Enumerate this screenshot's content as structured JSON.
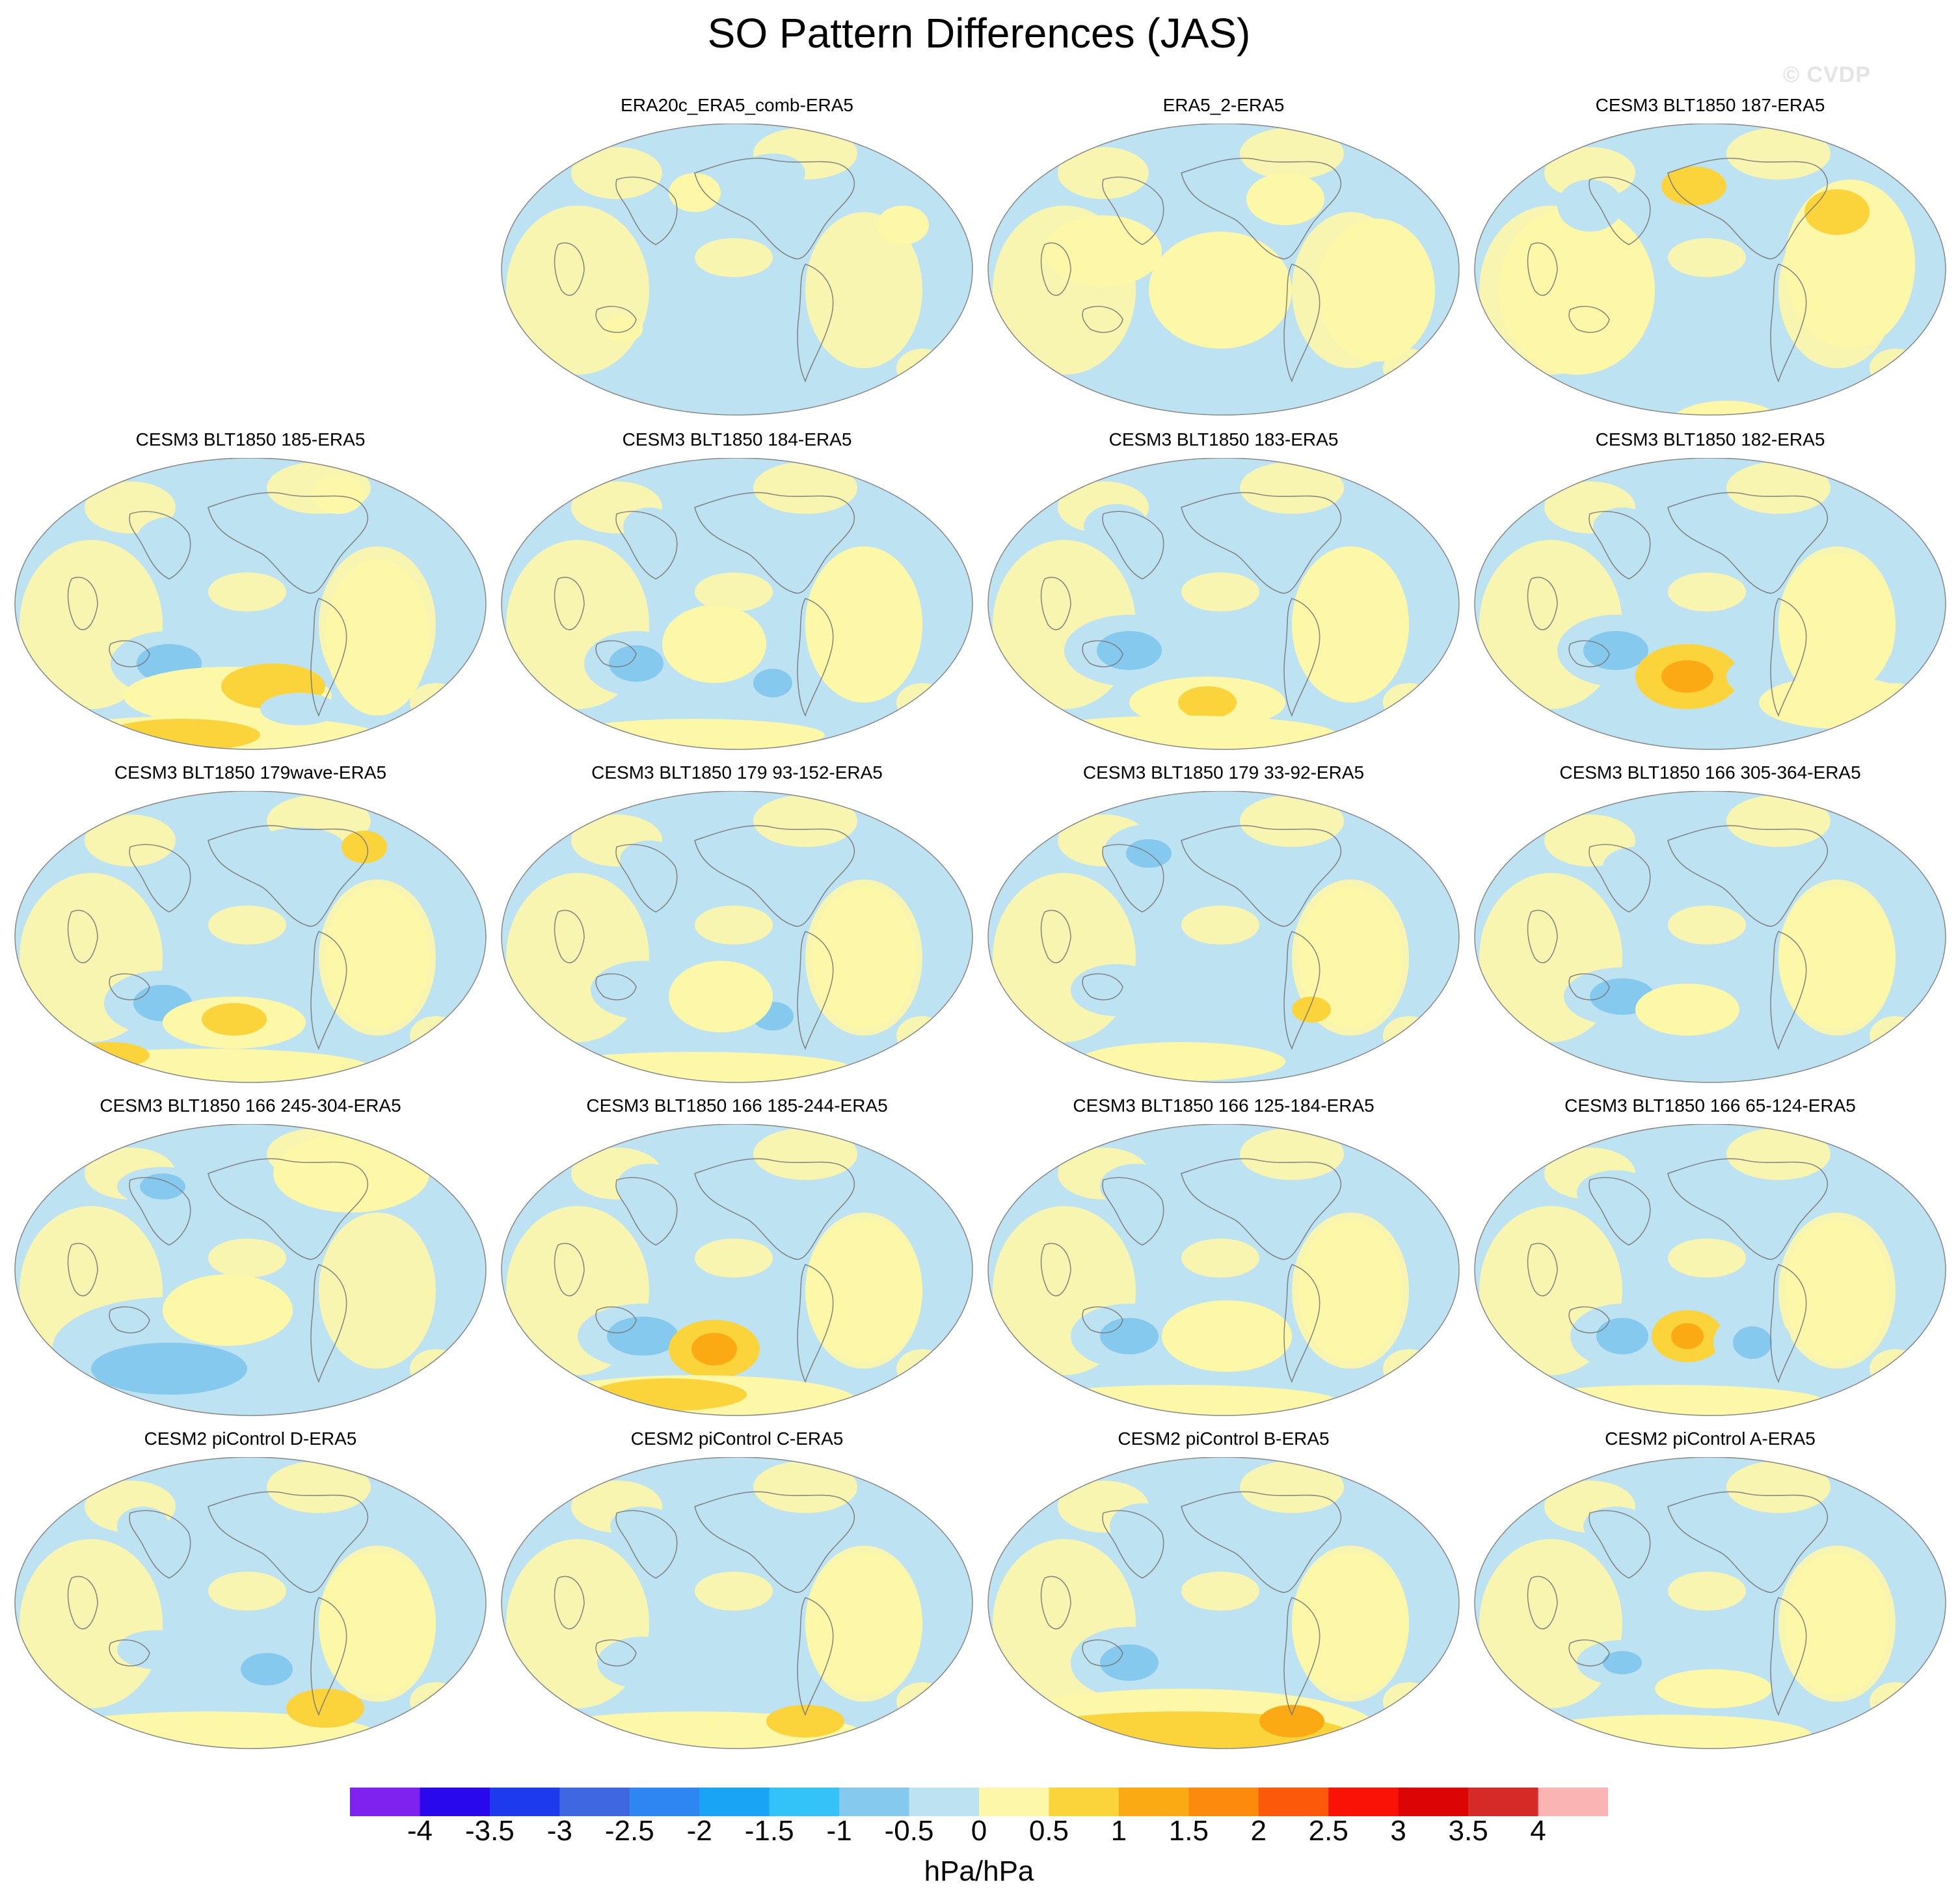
{
  "title": "SO Pattern Differences (JAS)",
  "watermark": "© CVDP",
  "colorbar": {
    "units": "hPa/hPa",
    "labels": [
      "-4",
      "-3.5",
      "-3",
      "-2.5",
      "-2",
      "-1.5",
      "-1",
      "-0.5",
      "0",
      "0.5",
      "1",
      "1.5",
      "2",
      "2.5",
      "3",
      "3.5",
      "4"
    ],
    "colors": [
      "#7f22f0",
      "#2a08ee",
      "#1d3bec",
      "#3f68e0",
      "#2e86f2",
      "#1aa4f5",
      "#33c3f6",
      "#86c9ee",
      "#bde2f2",
      "#fdf7a8",
      "#fbd33a",
      "#fbaa13",
      "#fc8a0c",
      "#fc5a0a",
      "#fb1206",
      "#dc0404",
      "#d62a28",
      "#fbb4b4"
    ]
  },
  "panels": [
    {
      "title": "ERA20c_ERA5_comb-ERA5",
      "features": [
        [
          "n",
          500,
          560,
          110,
          44
        ],
        [
          "n",
          390,
          520,
          70,
          28
        ],
        [
          "n",
          420,
          120,
          50,
          30
        ],
        [
          "n",
          250,
          180,
          40,
          25
        ],
        [
          "p",
          430,
          580,
          200,
          40
        ],
        [
          "P",
          470,
          590,
          100,
          28
        ],
        [
          "p",
          300,
          150,
          40,
          30
        ],
        [
          "p",
          620,
          200,
          40,
          30
        ],
        [
          "p",
          190,
          360,
          30,
          20
        ]
      ]
    },
    {
      "title": "ERA5_2-ERA5",
      "features": [
        [
          "p",
          360,
          300,
          110,
          90
        ],
        [
          "p",
          180,
          240,
          90,
          55
        ],
        [
          "p",
          600,
          300,
          90,
          110
        ],
        [
          "p",
          460,
          160,
          60,
          40
        ],
        [
          "p",
          280,
          560,
          120,
          40
        ],
        [
          "p",
          560,
          530,
          80,
          35
        ]
      ]
    },
    {
      "title": "CESM3 BLT1850 187-ERA5",
      "features": [
        [
          "p",
          160,
          300,
          120,
          130
        ],
        [
          "p",
          580,
          260,
          100,
          130
        ],
        [
          "p",
          390,
          510,
          90,
          40
        ],
        [
          "P",
          560,
          180,
          50,
          35
        ],
        [
          "P",
          340,
          140,
          50,
          30
        ],
        [
          "n",
          420,
          570,
          90,
          55
        ],
        [
          "N",
          430,
          570,
          45,
          30
        ],
        [
          "n",
          570,
          560,
          50,
          30
        ],
        [
          "n",
          180,
          170,
          50,
          40
        ]
      ]
    },
    {
      "title": "CESM3 BLT1850 185-ERA5",
      "features": [
        [
          "n",
          240,
          360,
          90,
          50
        ],
        [
          "N",
          240,
          360,
          50,
          30
        ],
        [
          "n",
          240,
          170,
          50,
          35
        ],
        [
          "p",
          330,
          410,
          160,
          45
        ],
        [
          "P",
          400,
          395,
          80,
          35
        ],
        [
          "p",
          300,
          470,
          260,
          30
        ],
        [
          "P",
          260,
          470,
          120,
          25
        ],
        [
          "n",
          440,
          430,
          60,
          25
        ],
        [
          "p",
          560,
          320,
          80,
          120
        ],
        [
          "p",
          500,
          100,
          40,
          30
        ]
      ]
    },
    {
      "title": "CESM3 BLT1850 184-ERA5",
      "features": [
        [
          "n",
          210,
          360,
          80,
          50
        ],
        [
          "N",
          210,
          360,
          42,
          28
        ],
        [
          "n",
          420,
          390,
          60,
          40
        ],
        [
          "N",
          420,
          390,
          30,
          22
        ],
        [
          "P",
          330,
          330,
          45,
          35
        ],
        [
          "p",
          330,
          330,
          80,
          60
        ],
        [
          "n",
          230,
          150,
          40,
          30
        ],
        [
          "p",
          560,
          300,
          90,
          120
        ],
        [
          "p",
          300,
          470,
          200,
          25
        ]
      ]
    },
    {
      "title": "CESM3 BLT1850 183-ERA5",
      "features": [
        [
          "n",
          220,
          340,
          100,
          55
        ],
        [
          "N",
          220,
          340,
          50,
          30
        ],
        [
          "n",
          200,
          150,
          50,
          35
        ],
        [
          "p",
          340,
          420,
          120,
          40
        ],
        [
          "P",
          340,
          420,
          45,
          25
        ],
        [
          "p",
          560,
          300,
          90,
          120
        ],
        [
          "p",
          300,
          470,
          240,
          30
        ]
      ]
    },
    {
      "title": "CESM3 BLT1850 182-ERA5",
      "features": [
        [
          "n",
          220,
          340,
          90,
          55
        ],
        [
          "N",
          220,
          340,
          50,
          30
        ],
        [
          "P",
          330,
          380,
          80,
          50
        ],
        [
          "O",
          330,
          380,
          40,
          25
        ],
        [
          "n",
          440,
          380,
          50,
          30
        ],
        [
          "n",
          600,
          360,
          45,
          30
        ],
        [
          "p",
          560,
          420,
          120,
          40
        ],
        [
          "n",
          230,
          150,
          45,
          30
        ],
        [
          "p",
          560,
          300,
          90,
          110
        ]
      ]
    },
    {
      "title": "CESM3 BLT1850 179wave-ERA5",
      "features": [
        [
          "n",
          230,
          370,
          90,
          50
        ],
        [
          "N",
          230,
          370,
          45,
          28
        ],
        [
          "p",
          340,
          400,
          110,
          40
        ],
        [
          "P",
          340,
          395,
          50,
          25
        ],
        [
          "p",
          300,
          470,
          250,
          30
        ],
        [
          "P",
          150,
          450,
          60,
          20
        ],
        [
          "n",
          440,
          130,
          70,
          30
        ],
        [
          "p",
          560,
          300,
          80,
          110
        ],
        [
          "P",
          540,
          130,
          35,
          25
        ]
      ]
    },
    {
      "title": "CESM3 BLT1850 179 93-152-ERA5",
      "features": [
        [
          "n",
          220,
          350,
          80,
          45
        ],
        [
          "n",
          420,
          390,
          60,
          40
        ],
        [
          "N",
          420,
          390,
          32,
          22
        ],
        [
          "P",
          340,
          360,
          50,
          35
        ],
        [
          "p",
          340,
          360,
          80,
          55
        ],
        [
          "n",
          230,
          150,
          45,
          30
        ],
        [
          "p",
          300,
          470,
          240,
          25
        ],
        [
          "p",
          560,
          300,
          80,
          110
        ]
      ]
    },
    {
      "title": "CESM3 BLT1850 179 33-92-ERA5",
      "features": [
        [
          "n",
          250,
          140,
          70,
          45
        ],
        [
          "N",
          250,
          140,
          35,
          22
        ],
        [
          "n",
          200,
          350,
          70,
          40
        ],
        [
          "p",
          300,
          460,
          160,
          30
        ],
        [
          "p",
          560,
          300,
          80,
          110
        ],
        [
          "P",
          500,
          380,
          30,
          20
        ]
      ]
    },
    {
      "title": "CESM3 BLT1850 166 305-364-ERA5",
      "features": [
        [
          "n",
          230,
          360,
          90,
          45
        ],
        [
          "N",
          230,
          360,
          50,
          28
        ],
        [
          "p",
          330,
          380,
          80,
          40
        ],
        [
          "p",
          560,
          300,
          90,
          110
        ],
        [
          "n",
          250,
          160,
          50,
          30
        ]
      ]
    },
    {
      "title": "CESM3 BLT1850 166 245-304-ERA5",
      "features": [
        [
          "n",
          240,
          390,
          180,
          80
        ],
        [
          "N",
          240,
          420,
          120,
          40
        ],
        [
          "P",
          330,
          330,
          60,
          35
        ],
        [
          "p",
          330,
          330,
          100,
          55
        ],
        [
          "n",
          230,
          140,
          70,
          30
        ],
        [
          "N",
          230,
          140,
          35,
          20
        ],
        [
          "P",
          560,
          90,
          60,
          40
        ],
        [
          "p",
          520,
          120,
          120,
          60
        ]
      ]
    },
    {
      "title": "CESM3 BLT1850 166 185-244-ERA5",
      "features": [
        [
          "n",
          220,
          370,
          100,
          50
        ],
        [
          "N",
          220,
          370,
          55,
          30
        ],
        [
          "P",
          330,
          390,
          70,
          45
        ],
        [
          "O",
          330,
          390,
          35,
          25
        ],
        [
          "p",
          300,
          470,
          250,
          40
        ],
        [
          "P",
          260,
          460,
          120,
          25
        ],
        [
          "n",
          230,
          140,
          50,
          35
        ],
        [
          "p",
          560,
          300,
          90,
          110
        ]
      ]
    },
    {
      "title": "CESM3 BLT1850 166 125-184-ERA5",
      "features": [
        [
          "n",
          220,
          370,
          90,
          50
        ],
        [
          "N",
          220,
          370,
          45,
          28
        ],
        [
          "P",
          370,
          370,
          60,
          35
        ],
        [
          "p",
          370,
          370,
          100,
          55
        ],
        [
          "n",
          230,
          140,
          55,
          35
        ],
        [
          "p",
          560,
          300,
          80,
          110
        ],
        [
          "p",
          300,
          470,
          240,
          25
        ]
      ]
    },
    {
      "title": "CESM3 BLT1850 166 65-124-ERA5",
      "features": [
        [
          "n",
          230,
          370,
          80,
          50
        ],
        [
          "N",
          230,
          370,
          40,
          28
        ],
        [
          "P",
          330,
          370,
          55,
          40
        ],
        [
          "O",
          330,
          370,
          25,
          20
        ],
        [
          "n",
          430,
          380,
          60,
          45
        ],
        [
          "N",
          430,
          380,
          30,
          25
        ],
        [
          "n",
          220,
          150,
          60,
          35
        ],
        [
          "p",
          560,
          300,
          80,
          110
        ],
        [
          "p",
          300,
          470,
          240,
          25
        ]
      ]
    },
    {
      "title": "CESM2 piControl D-ERA5",
      "features": [
        [
          "n",
          390,
          370,
          80,
          45
        ],
        [
          "N",
          390,
          370,
          40,
          25
        ],
        [
          "n",
          220,
          340,
          60,
          30
        ],
        [
          "p",
          300,
          470,
          260,
          35
        ],
        [
          "P",
          480,
          430,
          60,
          30
        ],
        [
          "p",
          560,
          300,
          90,
          110
        ],
        [
          "n",
          200,
          150,
          40,
          30
        ]
      ]
    },
    {
      "title": "CESM2 piControl C-ERA5",
      "features": [
        [
          "n",
          220,
          360,
          70,
          40
        ],
        [
          "p",
          300,
          470,
          260,
          35
        ],
        [
          "P",
          470,
          450,
          60,
          25
        ],
        [
          "p",
          560,
          300,
          90,
          110
        ],
        [
          "n",
          220,
          150,
          50,
          30
        ]
      ]
    },
    {
      "title": "CESM2 piControl B-ERA5",
      "features": [
        [
          "n",
          220,
          360,
          90,
          55
        ],
        [
          "N",
          220,
          360,
          45,
          28
        ],
        [
          "p",
          300,
          460,
          300,
          60
        ],
        [
          "P",
          300,
          470,
          260,
          35
        ],
        [
          "O",
          470,
          450,
          50,
          25
        ],
        [
          "p",
          560,
          300,
          90,
          110
        ],
        [
          "n",
          240,
          150,
          50,
          35
        ]
      ]
    },
    {
      "title": "CESM2 piControl A-ERA5",
      "features": [
        [
          "n",
          230,
          360,
          70,
          35
        ],
        [
          "N",
          230,
          360,
          30,
          18
        ],
        [
          "p",
          370,
          400,
          90,
          30
        ],
        [
          "p",
          300,
          470,
          220,
          30
        ],
        [
          "p",
          560,
          300,
          80,
          110
        ],
        [
          "n",
          220,
          150,
          50,
          30
        ]
      ]
    }
  ]
}
